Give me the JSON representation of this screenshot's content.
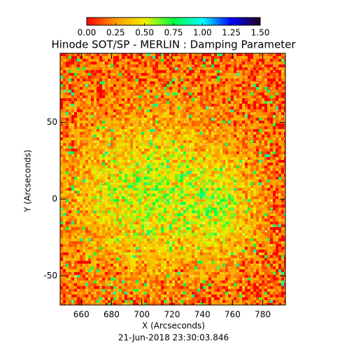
{
  "chart_data": {
    "type": "image",
    "title": "Hinode SOT/SP - MERLIN : Damping Parameter",
    "xlabel": "X (Arcseconds)",
    "ylabel": "Y (Arcseconds)",
    "subtitle": "21-Jun-2018 23:30:03.846",
    "xlim": [
      646,
      795
    ],
    "xticks": [
      660,
      680,
      700,
      720,
      740,
      760,
      780
    ],
    "ylim": [
      -69,
      95
    ],
    "yticks": [
      -50,
      0,
      50
    ],
    "colorbar": {
      "lim": [
        0,
        1.5
      ],
      "ticks": [
        {
          "value": 0,
          "label": "0.00"
        },
        {
          "value": 0.25,
          "label": "0.25"
        },
        {
          "value": 0.5,
          "label": "0.50"
        },
        {
          "value": 0.75,
          "label": "0.75"
        },
        {
          "value": 1.0,
          "label": "1.00"
        },
        {
          "value": 1.25,
          "label": "1.25"
        },
        {
          "value": 1.5,
          "label": "1.50"
        }
      ],
      "colormap": [
        "#ff0000",
        "#ff9900",
        "#f0f000",
        "#00ff40",
        "#00ffff",
        "#0000ff",
        "#200020"
      ]
    }
  }
}
